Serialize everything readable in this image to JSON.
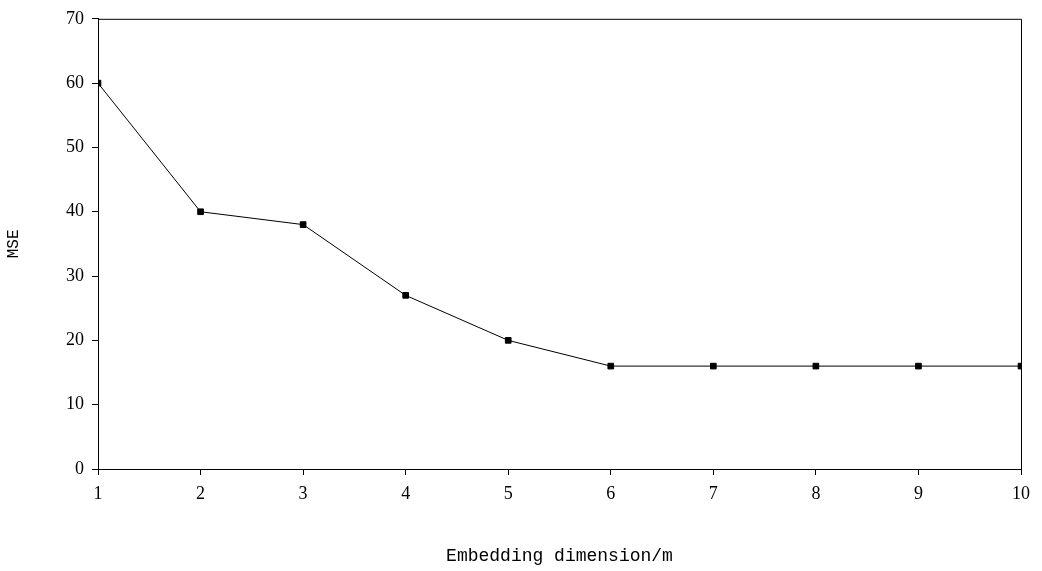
{
  "chart_data": {
    "type": "line",
    "xlabel": "Embedding dimension/m",
    "ylabel": "MSE",
    "x": [
      1,
      2,
      3,
      4,
      5,
      6,
      7,
      8,
      9,
      10
    ],
    "series": [
      {
        "color": "#000000",
        "values": [
          60,
          40,
          38,
          27,
          20,
          16,
          16,
          16,
          16,
          16
        ]
      }
    ],
    "xlim": [
      1,
      10
    ],
    "xticks": [
      1,
      2,
      3,
      4,
      5,
      6,
      7,
      8,
      9,
      10
    ],
    "ylim": [
      0,
      70
    ],
    "yticks": [
      0,
      10,
      20,
      30,
      40,
      50,
      60,
      70
    ],
    "grid": false,
    "legend": false,
    "marker": "square",
    "line_style": "solid"
  }
}
